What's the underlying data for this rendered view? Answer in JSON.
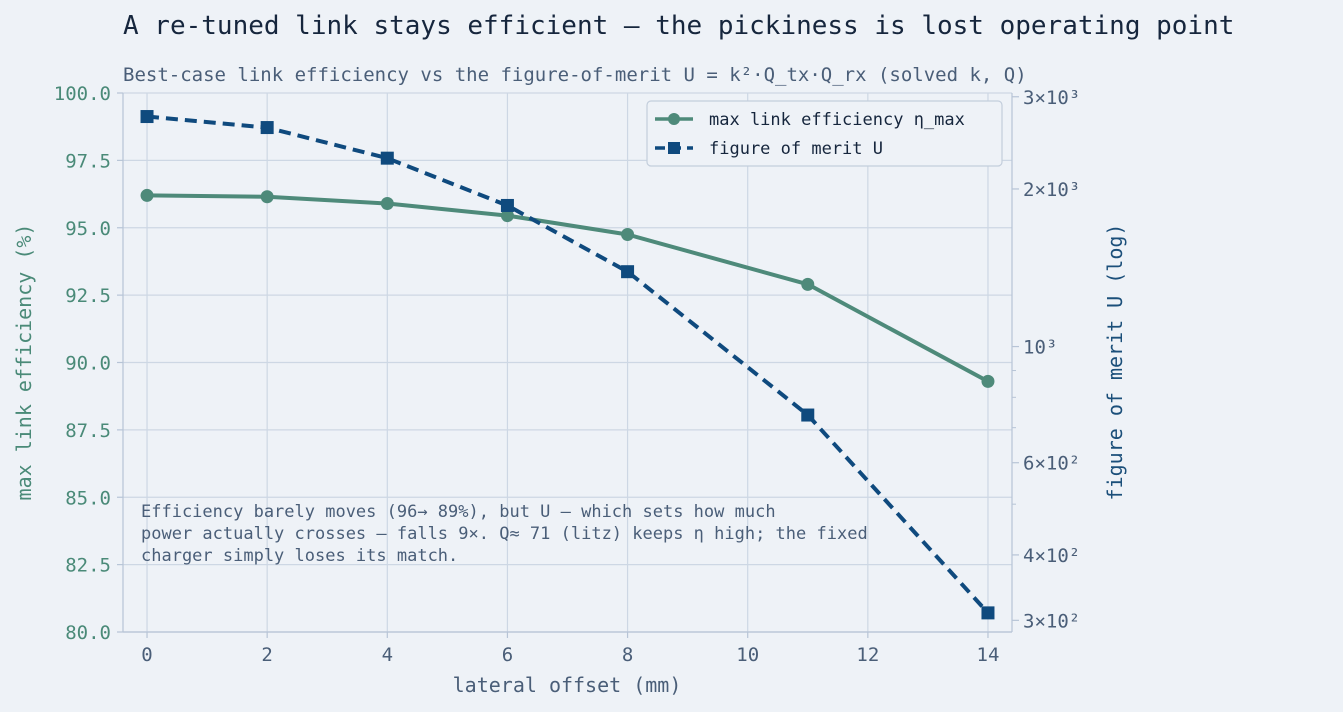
{
  "colors": {
    "background": "#eef2f7",
    "grid": "#cdd7e4",
    "axis": "#b7c4d6",
    "efficiency": "#4e8a7a",
    "merit": "#0f4a7e"
  },
  "chart_data": {
    "type": "line",
    "title": "A re-tuned link stays efficient — the pickiness is lost operating point",
    "subtitle": "Best-case link efficiency vs the figure-of-merit U = k²·Q_tx·Q_rx (solved k, Q)",
    "xlabel": "lateral offset (mm)",
    "ylabel": "max link efficiency  (%)",
    "ylabel_right": "figure of merit  U  (log)",
    "x": [
      0,
      2,
      4,
      6,
      8,
      11,
      14
    ],
    "xlim": [
      -0.4,
      14.4
    ],
    "xticks": [
      0,
      2,
      4,
      6,
      8,
      10,
      12,
      14
    ],
    "ylim": [
      80,
      100
    ],
    "yticks": [
      "80.0",
      "82.5",
      "85.0",
      "87.5",
      "90.0",
      "92.5",
      "95.0",
      "97.5",
      "100.0"
    ],
    "ylim_right": [
      285,
      3050
    ],
    "yscale_right": "log",
    "yticks_right": [
      {
        "value": 300,
        "label": "3×10²"
      },
      {
        "value": 400,
        "label": "4×10²"
      },
      {
        "value": 600,
        "label": "6×10²"
      },
      {
        "value": 1000,
        "label": "10³"
      },
      {
        "value": 2000,
        "label": "2×10³"
      },
      {
        "value": 3000,
        "label": "3×10³"
      }
    ],
    "yminor_right": [
      500,
      700,
      800,
      900
    ],
    "grid": true,
    "legend_position": "top-right",
    "series": [
      {
        "name": "max link efficiency  η_max",
        "axis": "left",
        "style": "solid",
        "marker": "circle",
        "values": [
          96.2,
          96.15,
          95.9,
          95.45,
          94.75,
          92.9,
          89.3
        ]
      },
      {
        "name": "figure of merit  U",
        "axis": "right",
        "style": "dashed",
        "marker": "square",
        "values": [
          2750,
          2620,
          2290,
          1860,
          1390,
          740,
          310
        ]
      }
    ],
    "annotation": [
      "Efficiency barely moves (96→ 89%), but U — which sets how much",
      "power actually crosses — falls 9×. Q≈ 71 (litz) keeps η high; the fixed",
      "charger simply loses its match."
    ]
  }
}
